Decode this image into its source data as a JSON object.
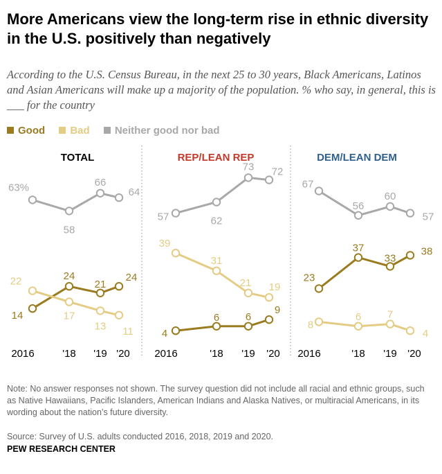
{
  "title": "More Americans view the long-term rise in ethnic diversity in the U.S. positively than negatively",
  "subtitle": "According to the U.S. Census Bureau, in the next 25 to 30 years, Black Americans, Latinos and Asian Americans will make up a majority of the population. % who say, in general, this is ___ for the country",
  "legend": [
    {
      "label": "Good",
      "color": "#9a7b1f"
    },
    {
      "label": "Bad",
      "color": "#e4cc85"
    },
    {
      "label": "Neither good nor bad",
      "color": "#a8a8a8"
    }
  ],
  "notes": {
    "note": "Note: No answer responses not shown. The survey question did not include all racial and ethnic groups, such as Native Hawaiians, Pacific Islanders, American Indians and Alaska Natives, or multiracial Americans, in its wording about the nation’s future diversity.",
    "source": "Source: Survey of U.S. adults conducted 2016, 2018, 2019 and 2020.",
    "org": "PEW RESEARCH CENTER"
  },
  "chart_data": [
    {
      "type": "line",
      "title": "TOTAL",
      "title_color": "#000000",
      "x": [
        2016,
        2018,
        2019,
        2020
      ],
      "tick_labels": [
        "2016",
        "'18",
        "'19",
        "'20"
      ],
      "series": [
        {
          "name": "Neither good nor bad",
          "color": "#a8a8a8",
          "values": [
            63,
            58,
            66,
            64
          ],
          "labels": [
            "63%",
            "58",
            "66",
            "64"
          ]
        },
        {
          "name": "Good",
          "color": "#9a7b1f",
          "values": [
            14,
            24,
            21,
            24
          ],
          "labels": [
            "14",
            "24",
            "21",
            "24"
          ]
        },
        {
          "name": "Bad",
          "color": "#e4cc85",
          "values": [
            22,
            17,
            13,
            11
          ],
          "labels": [
            "22",
            "17",
            "13",
            "11"
          ]
        }
      ]
    },
    {
      "type": "line",
      "title": "REP/LEAN REP",
      "title_color": "#c0392b",
      "x": [
        2016,
        2018,
        2019,
        2020
      ],
      "tick_labels": [
        "2016",
        "'18",
        "'19",
        "'20"
      ],
      "series": [
        {
          "name": "Neither good nor bad",
          "color": "#a8a8a8",
          "values": [
            57,
            62,
            73,
            72
          ],
          "labels": [
            "57",
            "62",
            "73",
            "72"
          ]
        },
        {
          "name": "Good",
          "color": "#9a7b1f",
          "values": [
            4,
            6,
            6,
            9
          ],
          "labels": [
            "4",
            "6",
            "6",
            "9"
          ]
        },
        {
          "name": "Bad",
          "color": "#e4cc85",
          "values": [
            39,
            31,
            21,
            19
          ],
          "labels": [
            "39",
            "31",
            "21",
            "19"
          ]
        }
      ]
    },
    {
      "type": "line",
      "title": "DEM/LEAN DEM",
      "title_color": "#2f5f8a",
      "x": [
        2016,
        2018,
        2019,
        2020
      ],
      "tick_labels": [
        "2016",
        "'18",
        "'19",
        "'20"
      ],
      "series": [
        {
          "name": "Neither good nor bad",
          "color": "#a8a8a8",
          "values": [
            67,
            56,
            60,
            57
          ],
          "labels": [
            "67",
            "56",
            "60",
            "57"
          ]
        },
        {
          "name": "Good",
          "color": "#9a7b1f",
          "values": [
            23,
            37,
            33,
            38
          ],
          "labels": [
            "23",
            "37",
            "33",
            "38"
          ]
        },
        {
          "name": "Bad",
          "color": "#e4cc85",
          "values": [
            8,
            6,
            7,
            4
          ],
          "labels": [
            "8",
            "6",
            "7",
            "4"
          ]
        }
      ]
    }
  ]
}
